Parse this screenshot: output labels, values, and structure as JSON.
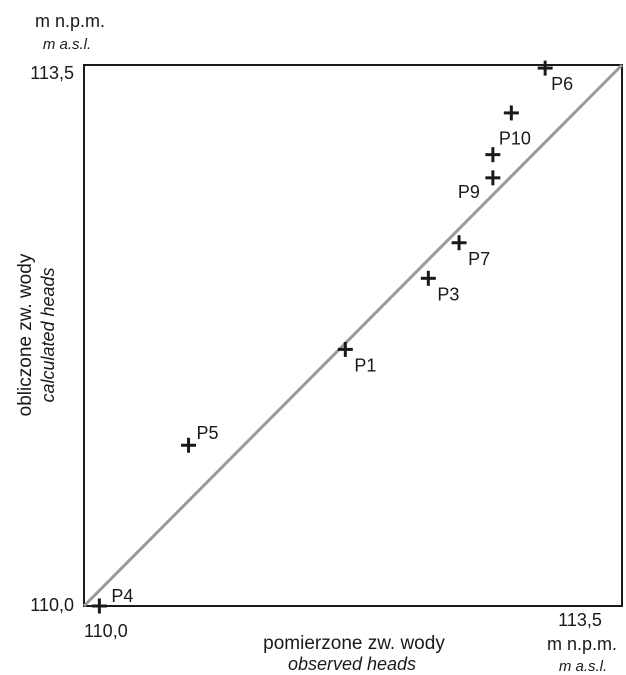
{
  "chart_data": {
    "type": "scatter",
    "title": "",
    "xlabel": "pomierzone zw. wody",
    "xlabel_en": "observed heads",
    "ylabel": "obliczone zw. wody",
    "ylabel_en": "calculated heads",
    "xlim": [
      110.0,
      113.5
    ],
    "ylim": [
      110.0,
      113.5
    ],
    "ticks": {
      "x_min": "110,0",
      "x_max": "113,5",
      "y_min": "110,0",
      "y_max": "113,5"
    },
    "unit_pl": "m n.p.m.",
    "unit_en": "m a.s.l.",
    "reference_line": "1:1",
    "grid": false,
    "points": [
      {
        "label": "P1",
        "x": 111.7,
        "y": 111.66
      },
      {
        "label": "P3",
        "x": 112.24,
        "y": 112.12
      },
      {
        "label": "P4",
        "x": 110.1,
        "y": 110.0
      },
      {
        "label": "P5",
        "x": 110.68,
        "y": 111.04
      },
      {
        "label": "P6",
        "x": 113.0,
        "y": 113.48
      },
      {
        "label": "P7",
        "x": 112.44,
        "y": 112.35
      },
      {
        "label": "P9",
        "x": 112.66,
        "y": 112.77
      },
      {
        "label": "P10",
        "x": 112.66,
        "y": 112.92
      },
      {
        "label": "",
        "x": 112.78,
        "y": 113.19
      }
    ],
    "colors": {
      "marker": "#1a1a1a",
      "reference_line": "#9a9a9a",
      "frame": "#1a1a1a"
    }
  }
}
